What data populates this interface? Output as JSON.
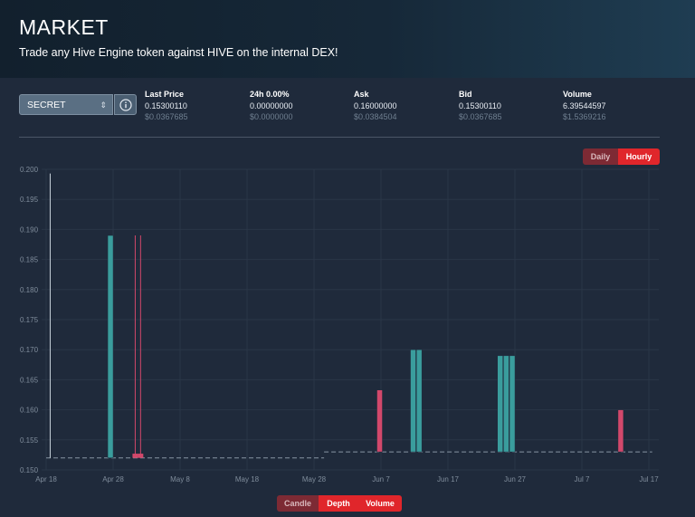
{
  "header": {
    "title": "MARKET",
    "subtitle": "Trade any Hive Engine token against HIVE on the internal DEX!"
  },
  "token_selector": {
    "value": "SECRET"
  },
  "stats": [
    {
      "label": "Last Price",
      "value": "0.15300110",
      "usd": "$0.0367685"
    },
    {
      "label": "24h 0.00%",
      "value": "0.00000000",
      "usd": "$0.0000000"
    },
    {
      "label": "Ask",
      "value": "0.16000000",
      "usd": "$0.0384504"
    },
    {
      "label": "Bid",
      "value": "0.15300110",
      "usd": "$0.0367685"
    },
    {
      "label": "Volume",
      "value": "6.39544597",
      "usd": "$1.5369216"
    }
  ],
  "interval_toggle": {
    "daily": "Daily",
    "hourly": "Hourly",
    "active": "Hourly"
  },
  "view_toggle": {
    "candle": "Candle",
    "depth": "Depth",
    "volume": "Volume"
  },
  "colors": {
    "up": "#3a9d9d",
    "down": "#d2486b",
    "accent": "#e0262b"
  },
  "chart_data": {
    "type": "candlestick",
    "y_ticks": [
      "0.200",
      "0.195",
      "0.190",
      "0.185",
      "0.180",
      "0.175",
      "0.170",
      "0.165",
      "0.160",
      "0.155",
      "0.150"
    ],
    "ylim": [
      0.15,
      0.2
    ],
    "x_ticks": [
      "Apr 18",
      "Apr 28",
      "May 8",
      "May 18",
      "May 28",
      "Jun 7",
      "Jun 17",
      "Jun 27",
      "Jul 7",
      "Jul 17"
    ],
    "x_tick_days": [
      0,
      10,
      20,
      30,
      40,
      50,
      60,
      70,
      80,
      90
    ],
    "grid": true,
    "candles": [
      {
        "day": 0.6,
        "open": 0.152,
        "close": 0.152,
        "high": 0.1993,
        "low": 0.152,
        "dir": "up",
        "kind": "wick"
      },
      {
        "day": 9.6,
        "open": 0.152,
        "close": 0.189,
        "high": 0.189,
        "low": 0.152,
        "dir": "up",
        "kind": "bar"
      },
      {
        "day": 13.3,
        "open": 0.1527,
        "close": 0.152,
        "high": 0.189,
        "low": 0.152,
        "dir": "down",
        "kind": "thin"
      },
      {
        "day": 14.1,
        "open": 0.1527,
        "close": 0.152,
        "high": 0.189,
        "low": 0.152,
        "dir": "down",
        "kind": "thin"
      },
      {
        "day": 49.8,
        "open": 0.1633,
        "close": 0.153,
        "high": 0.1633,
        "low": 0.153,
        "dir": "down",
        "kind": "bar"
      },
      {
        "day": 54.8,
        "open": 0.153,
        "close": 0.17,
        "high": 0.17,
        "low": 0.153,
        "dir": "up",
        "kind": "bar"
      },
      {
        "day": 55.7,
        "open": 0.153,
        "close": 0.17,
        "high": 0.17,
        "low": 0.153,
        "dir": "up",
        "kind": "bar"
      },
      {
        "day": 67.8,
        "open": 0.153,
        "close": 0.169,
        "high": 0.169,
        "low": 0.153,
        "dir": "up",
        "kind": "bar"
      },
      {
        "day": 68.7,
        "open": 0.153,
        "close": 0.169,
        "high": 0.169,
        "low": 0.153,
        "dir": "up",
        "kind": "bar"
      },
      {
        "day": 69.6,
        "open": 0.153,
        "close": 0.169,
        "high": 0.169,
        "low": 0.153,
        "dir": "up",
        "kind": "bar"
      },
      {
        "day": 85.8,
        "open": 0.16,
        "close": 0.153,
        "high": 0.16,
        "low": 0.153,
        "dir": "down",
        "kind": "bar"
      }
    ],
    "baseline": [
      {
        "from_day": 0,
        "to_day": 41.5,
        "value": 0.152
      },
      {
        "from_day": 41.5,
        "to_day": 90.5,
        "value": 0.153
      }
    ]
  }
}
